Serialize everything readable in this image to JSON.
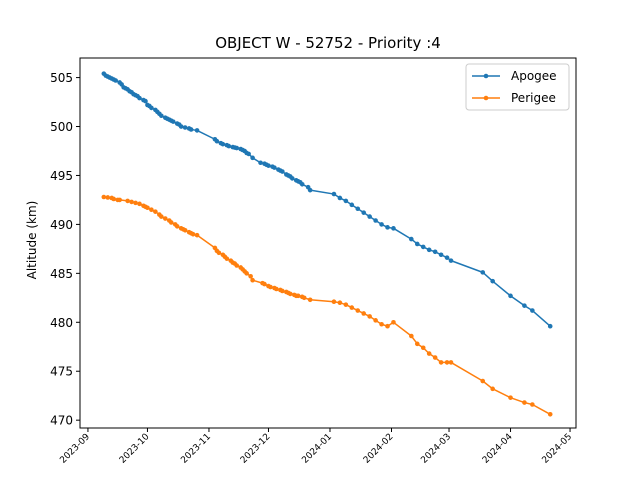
{
  "chart_data": {
    "type": "line",
    "title": "OBJECT W - 52752 - Priority :4",
    "xlabel": "",
    "ylabel": "Altitude (km)",
    "x_type": "date",
    "xlim": [
      "2023-08-28",
      "2024-05-04"
    ],
    "ylim": [
      469.2,
      507.0
    ],
    "x_ticks": [
      "2023-09",
      "2023-10",
      "2023-11",
      "2023-12",
      "2024-01",
      "2024-02",
      "2024-03",
      "2024-04",
      "2024-05"
    ],
    "y_ticks": [
      470,
      475,
      480,
      485,
      490,
      495,
      500,
      505
    ],
    "grid": false,
    "legend": "upper right",
    "series": [
      {
        "name": "Apogee",
        "color": "#1f77b4",
        "x": [
          "2023-09-09",
          "2023-09-10",
          "2023-09-11",
          "2023-09-12",
          "2023-09-13",
          "2023-09-14",
          "2023-09-15",
          "2023-09-17",
          "2023-09-18",
          "2023-09-19",
          "2023-09-20",
          "2023-09-21",
          "2023-09-22",
          "2023-09-23",
          "2023-09-24",
          "2023-09-25",
          "2023-09-26",
          "2023-09-27",
          "2023-09-29",
          "2023-09-30",
          "2023-10-01",
          "2023-10-02",
          "2023-10-03",
          "2023-10-05",
          "2023-10-06",
          "2023-10-07",
          "2023-10-08",
          "2023-10-10",
          "2023-10-11",
          "2023-10-12",
          "2023-10-13",
          "2023-10-14",
          "2023-10-16",
          "2023-10-17",
          "2023-10-18",
          "2023-10-20",
          "2023-10-22",
          "2023-10-23",
          "2023-10-26",
          "2023-11-04",
          "2023-11-05",
          "2023-11-07",
          "2023-11-08",
          "2023-11-10",
          "2023-11-11",
          "2023-11-13",
          "2023-11-14",
          "2023-11-15",
          "2023-11-17",
          "2023-11-18",
          "2023-11-19",
          "2023-11-20",
          "2023-11-21",
          "2023-11-23",
          "2023-11-27",
          "2023-11-29",
          "2023-11-30",
          "2023-12-01",
          "2023-12-03",
          "2023-12-04",
          "2023-12-06",
          "2023-12-07",
          "2023-12-08",
          "2023-12-10",
          "2023-12-11",
          "2023-12-12",
          "2023-12-13",
          "2023-12-15",
          "2023-12-16",
          "2023-12-17",
          "2023-12-18",
          "2023-12-21",
          "2023-12-22",
          "2024-01-03",
          "2024-01-06",
          "2024-01-09",
          "2024-01-12",
          "2024-01-15",
          "2024-01-18",
          "2024-01-21",
          "2024-01-24",
          "2024-01-27",
          "2024-01-30",
          "2024-02-02",
          "2024-02-11",
          "2024-02-14",
          "2024-02-17",
          "2024-02-20",
          "2024-02-23",
          "2024-02-26",
          "2024-02-29",
          "2024-03-02",
          "2024-03-18",
          "2024-03-23",
          "2024-04-01",
          "2024-04-08",
          "2024-04-12",
          "2024-04-21"
        ],
        "y": [
          505.4,
          505.2,
          505.1,
          505.0,
          504.9,
          504.8,
          504.7,
          504.5,
          504.3,
          504.0,
          503.9,
          503.8,
          503.6,
          503.5,
          503.3,
          503.2,
          503.1,
          502.9,
          502.7,
          502.6,
          502.2,
          502.1,
          501.9,
          501.7,
          501.5,
          501.3,
          501.1,
          500.9,
          500.8,
          500.7,
          500.6,
          500.5,
          500.3,
          500.2,
          500.0,
          499.9,
          499.8,
          499.7,
          499.6,
          498.7,
          498.5,
          498.3,
          498.2,
          498.1,
          498.0,
          497.9,
          497.85,
          497.8,
          497.7,
          497.6,
          497.5,
          497.3,
          497.2,
          496.8,
          496.3,
          496.2,
          496.1,
          496.0,
          495.9,
          495.8,
          495.6,
          495.5,
          495.4,
          495.1,
          495.0,
          494.9,
          494.7,
          494.5,
          494.4,
          494.3,
          494.1,
          493.8,
          493.5,
          493.1,
          492.7,
          492.4,
          492.0,
          491.6,
          491.2,
          490.8,
          490.4,
          490.0,
          489.7,
          489.6,
          488.5,
          488.0,
          487.7,
          487.4,
          487.2,
          486.9,
          486.6,
          486.3,
          485.1,
          484.2,
          482.7,
          481.7,
          481.2,
          479.6
        ]
      },
      {
        "name": "Perigee",
        "color": "#ff7f0e",
        "x": [
          "2023-09-09",
          "2023-09-11",
          "2023-09-13",
          "2023-09-14",
          "2023-09-16",
          "2023-09-17",
          "2023-09-21",
          "2023-09-23",
          "2023-09-25",
          "2023-09-27",
          "2023-09-29",
          "2023-09-30",
          "2023-10-01",
          "2023-10-03",
          "2023-10-05",
          "2023-10-07",
          "2023-10-08",
          "2023-10-10",
          "2023-10-12",
          "2023-10-13",
          "2023-10-15",
          "2023-10-16",
          "2023-10-18",
          "2023-10-19",
          "2023-10-20",
          "2023-10-22",
          "2023-10-23",
          "2023-10-24",
          "2023-10-26",
          "2023-11-04",
          "2023-11-05",
          "2023-11-06",
          "2023-11-08",
          "2023-11-09",
          "2023-11-10",
          "2023-11-12",
          "2023-11-13",
          "2023-11-14",
          "2023-11-15",
          "2023-11-17",
          "2023-11-18",
          "2023-11-19",
          "2023-11-20",
          "2023-11-22",
          "2023-11-23",
          "2023-11-28",
          "2023-11-29",
          "2023-12-01",
          "2023-12-02",
          "2023-12-04",
          "2023-12-05",
          "2023-12-07",
          "2023-12-08",
          "2023-12-10",
          "2023-12-11",
          "2023-12-12",
          "2023-12-14",
          "2023-12-15",
          "2023-12-16",
          "2023-12-18",
          "2023-12-19",
          "2023-12-22",
          "2024-01-03",
          "2024-01-06",
          "2024-01-09",
          "2024-01-12",
          "2024-01-15",
          "2024-01-18",
          "2024-01-21",
          "2024-01-24",
          "2024-01-27",
          "2024-01-30",
          "2024-02-02",
          "2024-02-11",
          "2024-02-14",
          "2024-02-17",
          "2024-02-20",
          "2024-02-23",
          "2024-02-26",
          "2024-02-29",
          "2024-03-02",
          "2024-03-18",
          "2024-03-23",
          "2024-04-01",
          "2024-04-08",
          "2024-04-12",
          "2024-04-21"
        ],
        "y": [
          492.8,
          492.75,
          492.7,
          492.6,
          492.5,
          492.5,
          492.4,
          492.3,
          492.2,
          492.1,
          491.9,
          491.8,
          491.7,
          491.5,
          491.3,
          491.0,
          490.8,
          490.6,
          490.4,
          490.2,
          490.0,
          489.8,
          489.6,
          489.5,
          489.4,
          489.2,
          489.1,
          489.0,
          488.9,
          487.6,
          487.3,
          487.1,
          486.9,
          486.7,
          486.5,
          486.3,
          486.1,
          486.0,
          485.8,
          485.6,
          485.4,
          485.2,
          485.0,
          484.7,
          484.3,
          484.0,
          483.9,
          483.7,
          483.6,
          483.5,
          483.4,
          483.3,
          483.2,
          483.1,
          483.0,
          482.9,
          482.8,
          482.7,
          482.7,
          482.6,
          482.5,
          482.3,
          482.1,
          482.0,
          481.8,
          481.5,
          481.2,
          480.9,
          480.6,
          480.2,
          479.8,
          479.6,
          480.0,
          478.6,
          477.8,
          477.4,
          476.8,
          476.4,
          475.9,
          475.9,
          475.9,
          474.0,
          473.2,
          472.3,
          471.8,
          471.6,
          470.6
        ]
      }
    ]
  }
}
